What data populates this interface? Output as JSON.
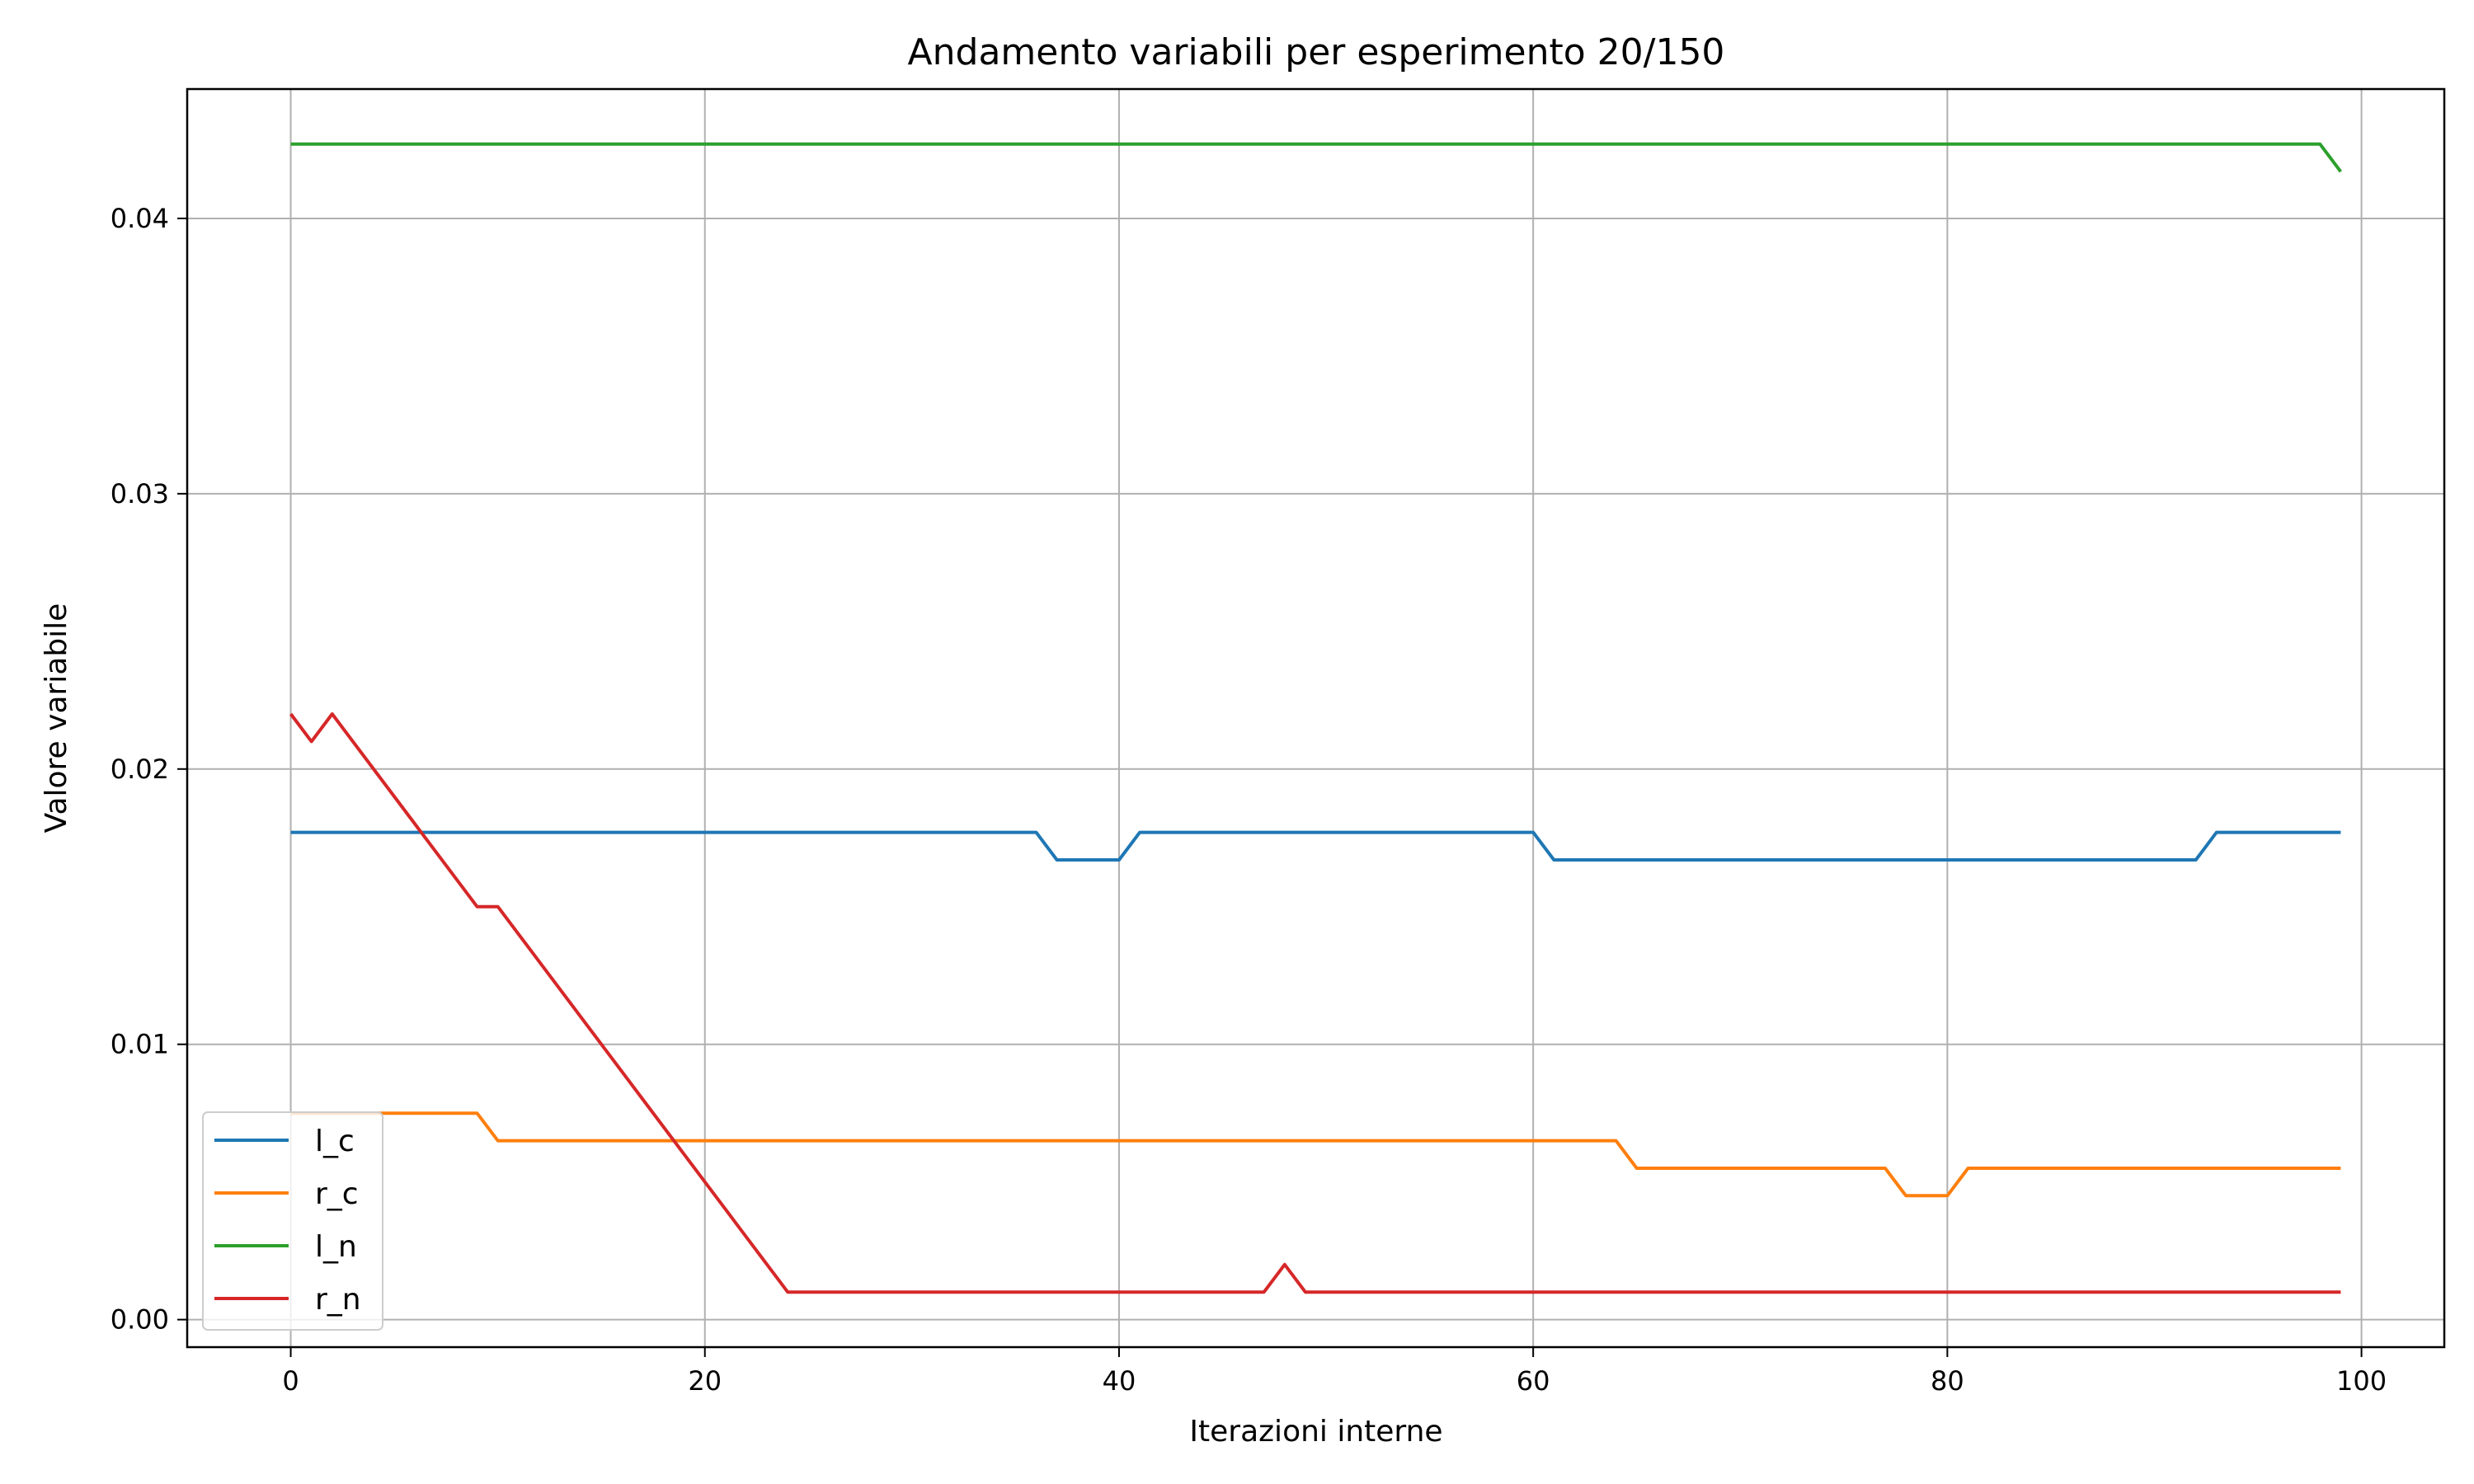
{
  "chart_data": {
    "type": "line",
    "title": "Andamento variabili per esperimento 20/150",
    "xlabel": "Iterazioni interne",
    "ylabel": "Valore variabile",
    "xlim": [
      -5,
      104
    ],
    "ylim": [
      -0.001,
      0.0447
    ],
    "xticks": [
      0,
      20,
      40,
      60,
      80,
      100
    ],
    "xtick_labels": [
      "0",
      "20",
      "40",
      "60",
      "80",
      "100"
    ],
    "yticks": [
      0.0,
      0.01,
      0.02,
      0.03,
      0.04
    ],
    "ytick_labels": [
      "0.00",
      "0.01",
      "0.02",
      "0.03",
      "0.04"
    ],
    "grid": true,
    "legend_position": "lower-left",
    "series": [
      {
        "name": "l_c",
        "color": "#1f77b4",
        "points": [
          [
            0,
            0.0177
          ],
          [
            36,
            0.0177
          ],
          [
            37,
            0.0167
          ],
          [
            40,
            0.0167
          ],
          [
            41,
            0.0177
          ],
          [
            60,
            0.0177
          ],
          [
            61,
            0.0167
          ],
          [
            92,
            0.0167
          ],
          [
            93,
            0.0177
          ],
          [
            99,
            0.0177
          ]
        ]
      },
      {
        "name": "r_c",
        "color": "#ff7f0e",
        "points": [
          [
            0,
            0.0075
          ],
          [
            9,
            0.0075
          ],
          [
            10,
            0.0065
          ],
          [
            64,
            0.0065
          ],
          [
            65,
            0.0055
          ],
          [
            77,
            0.0055
          ],
          [
            78,
            0.0045
          ],
          [
            80,
            0.0045
          ],
          [
            81,
            0.0055
          ],
          [
            99,
            0.0055
          ]
        ]
      },
      {
        "name": "l_n",
        "color": "#2ca02c",
        "points": [
          [
            0,
            0.0427
          ],
          [
            98,
            0.0427
          ],
          [
            99,
            0.0417
          ]
        ]
      },
      {
        "name": "r_n",
        "color": "#d62728",
        "points": [
          [
            0,
            0.022
          ],
          [
            1,
            0.021
          ],
          [
            2,
            0.022
          ],
          [
            9,
            0.015
          ],
          [
            10,
            0.015
          ],
          [
            24,
            0.001
          ],
          [
            47,
            0.001
          ],
          [
            48,
            0.002
          ],
          [
            49,
            0.001
          ],
          [
            99,
            0.001
          ]
        ]
      }
    ]
  }
}
